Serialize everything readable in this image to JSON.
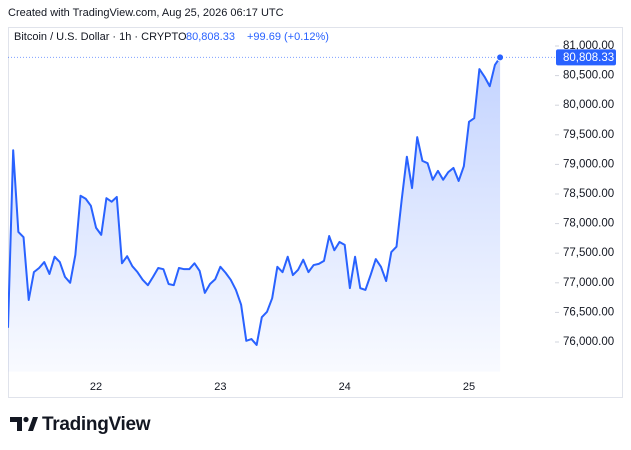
{
  "caption": "Created with TradingView.com, Aug 25, 2026 06:17 UTC",
  "brand": "TradingView",
  "chart_data": {
    "type": "area",
    "title": "Bitcoin / U.S. Dollar · 1h · CRYPTO",
    "price_label": "80,808.33",
    "change_label": "+99.69 (+0.12%)",
    "last_value_label": "80,808.33",
    "color": "#2962ff",
    "grid": false,
    "categories": [
      null,
      null,
      null,
      null,
      null,
      null,
      null,
      null,
      null,
      null,
      null,
      null,
      null,
      null,
      null,
      null,
      null,
      "22",
      null,
      null,
      null,
      null,
      null,
      null,
      null,
      null,
      null,
      null,
      null,
      null,
      null,
      null,
      null,
      null,
      null,
      null,
      null,
      null,
      null,
      null,
      null,
      "23",
      null,
      null,
      null,
      null,
      null,
      null,
      null,
      null,
      null,
      null,
      null,
      null,
      null,
      null,
      null,
      null,
      null,
      null,
      null,
      null,
      null,
      null,
      null,
      "24",
      null,
      null,
      null,
      null,
      null,
      null,
      null,
      null,
      null,
      null,
      null,
      null,
      null,
      null,
      null,
      null,
      null,
      null,
      null,
      null,
      null,
      null,
      null,
      "25",
      null,
      null,
      null,
      null,
      null,
      null
    ],
    "values": [
      76240,
      79240,
      77860,
      77770,
      76710,
      77180,
      77250,
      77350,
      77150,
      77440,
      77350,
      77100,
      77000,
      77470,
      78470,
      78420,
      78300,
      77930,
      77810,
      78430,
      78370,
      78450,
      77330,
      77450,
      77280,
      77180,
      77050,
      76960,
      77100,
      77250,
      77230,
      76980,
      76960,
      77250,
      77230,
      77230,
      77330,
      77200,
      76830,
      76980,
      77060,
      77270,
      77170,
      77050,
      76880,
      76630,
      76020,
      76050,
      75950,
      76420,
      76510,
      76740,
      77270,
      77180,
      77440,
      77130,
      77220,
      77390,
      77180,
      77300,
      77320,
      77370,
      77790,
      77550,
      77690,
      77640,
      76910,
      77440,
      76910,
      76880,
      77130,
      77400,
      77270,
      77030,
      77520,
      77610,
      78400,
      79130,
      78600,
      79460,
      79060,
      79020,
      78740,
      78890,
      78740,
      78870,
      78940,
      78720,
      78970,
      79720,
      79780,
      80610,
      80480,
      80320,
      80680,
      80808.33
    ],
    "ylim": [
      75500,
      81300
    ],
    "yticks": [
      {
        "value": 76000,
        "label": "76,000.00"
      },
      {
        "value": 76500,
        "label": "76,500.00"
      },
      {
        "value": 77000,
        "label": "77,000.00"
      },
      {
        "value": 77500,
        "label": "77,500.00"
      },
      {
        "value": 78000,
        "label": "78,000.00"
      },
      {
        "value": 78500,
        "label": "78,500.00"
      },
      {
        "value": 79000,
        "label": "79,000.00"
      },
      {
        "value": 79500,
        "label": "79,500.00"
      },
      {
        "value": 80000,
        "label": "80,000.00"
      },
      {
        "value": 80500,
        "label": "80,500.00"
      },
      {
        "value": 81000,
        "label": "81,000.00"
      }
    ]
  }
}
